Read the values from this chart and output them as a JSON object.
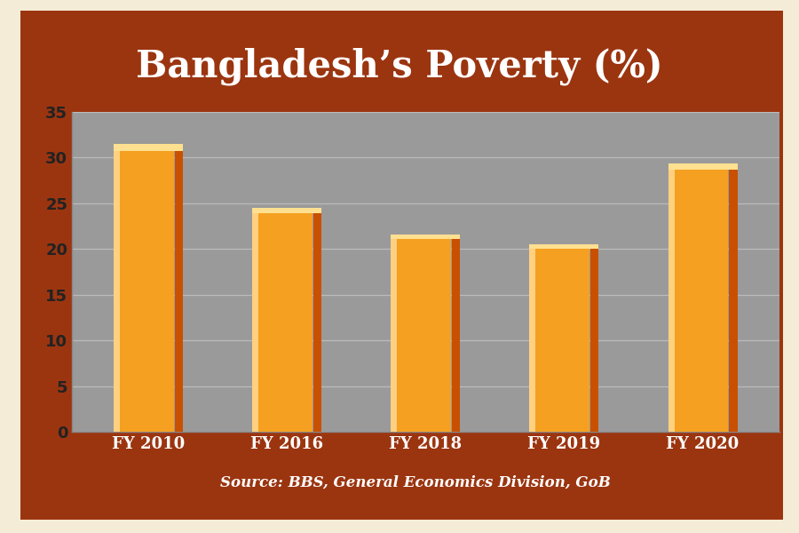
{
  "categories": [
    "FY 2010",
    "FY 2016",
    "FY 2018",
    "FY 2019",
    "FY 2020"
  ],
  "values": [
    31.5,
    24.5,
    21.6,
    20.5,
    29.4
  ],
  "bar_color_left": "#FFD080",
  "bar_color_main": "#F5A020",
  "bar_color_right": "#C85000",
  "bar_top_color": "#FFE090",
  "title": "Bangladesh’s Poverty (%)",
  "title_color": "#FFFFFF",
  "title_fontsize": 30,
  "source_text": "Source: BBS, General Economics Division, GoB",
  "source_fontsize": 12,
  "source_color": "#FFFFFF",
  "ylim": [
    0,
    35
  ],
  "yticks": [
    0,
    5,
    10,
    15,
    20,
    25,
    30,
    35
  ],
  "background_outer": "#F5ECD7",
  "background_brown": "#9B3510",
  "background_plot": "#9A9A9A",
  "tick_label_fontsize": 13,
  "tick_label_color": "#FFFFFF",
  "ytick_label_color": "#222222",
  "grid_color": "#BBBBBB",
  "axis_color": "#888888"
}
